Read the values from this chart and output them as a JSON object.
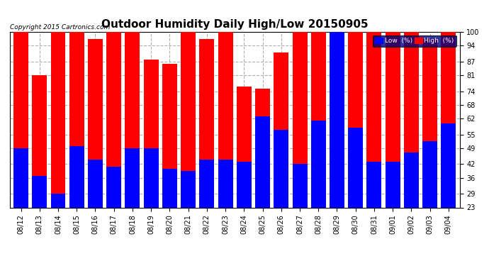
{
  "title": "Outdoor Humidity Daily High/Low 20150905",
  "copyright": "Copyright 2015 Cartronics.com",
  "legend_low_label": "Low  (%)",
  "legend_high_label": "High  (%)",
  "dates": [
    "08/12",
    "08/13",
    "08/14",
    "08/15",
    "08/16",
    "08/17",
    "08/18",
    "08/19",
    "08/20",
    "08/21",
    "08/22",
    "08/23",
    "08/24",
    "08/25",
    "08/26",
    "08/27",
    "08/28",
    "08/29",
    "08/30",
    "08/31",
    "09/01",
    "09/02",
    "09/03",
    "09/04"
  ],
  "high": [
    100,
    81,
    100,
    100,
    97,
    100,
    100,
    88,
    86,
    100,
    97,
    100,
    76,
    75,
    91,
    100,
    100,
    100,
    100,
    100,
    100,
    100,
    97,
    100
  ],
  "low": [
    49,
    37,
    29,
    50,
    44,
    41,
    49,
    49,
    40,
    39,
    44,
    44,
    43,
    63,
    57,
    42,
    61,
    100,
    58,
    43,
    43,
    47,
    52,
    60
  ],
  "ylim_min": 23,
  "ylim_max": 100,
  "yticks": [
    23,
    29,
    36,
    42,
    49,
    55,
    62,
    68,
    74,
    81,
    87,
    94,
    100
  ],
  "bar_width": 0.8,
  "high_color": "#ff0000",
  "low_color": "#0000ff",
  "bg_color": "#ffffff",
  "grid_color": "#b0b0b0",
  "title_fontsize": 11,
  "tick_fontsize": 7,
  "copyright_fontsize": 6.5
}
